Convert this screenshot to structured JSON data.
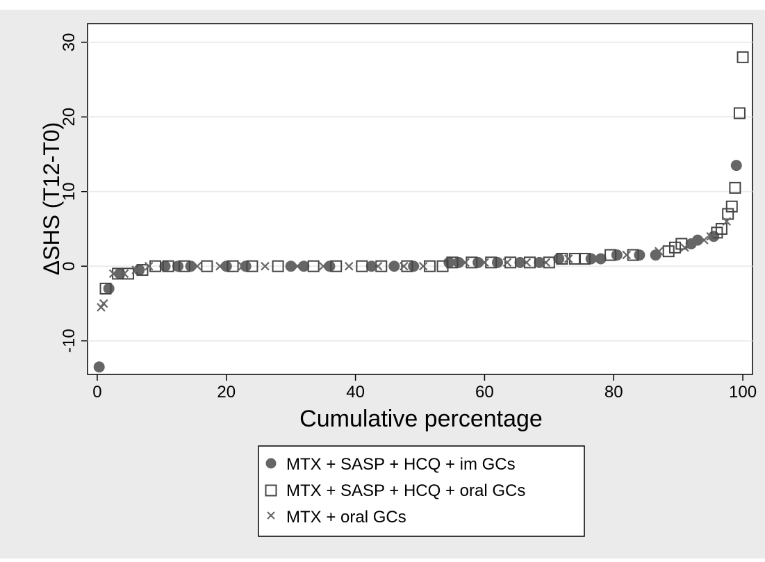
{
  "chart_data": {
    "type": "scatter",
    "xlabel": "Cumulative percentage",
    "ylabel": "ΔSHS (T12-T0)",
    "xlim": [
      -1.5,
      101.5
    ],
    "ylim": [
      -14.5,
      32.5
    ],
    "xticks": [
      0,
      20,
      40,
      60,
      80,
      100
    ],
    "yticks": [
      -10,
      0,
      10,
      20,
      30
    ],
    "grid": "horizontal",
    "legend_position": "bottom",
    "colors": {
      "marker": "#666666",
      "hollow": "#444444",
      "background": "#ebebeb",
      "plot": "#ffffff"
    },
    "series": [
      {
        "name": "MTX + SASP + HCQ + im GCs",
        "marker": "filled-circle",
        "points": [
          [
            0.3,
            -13.5
          ],
          [
            1.8,
            -3.0
          ],
          [
            3.5,
            -1.0
          ],
          [
            6.5,
            -0.5
          ],
          [
            10.5,
            0
          ],
          [
            12.5,
            0
          ],
          [
            14.5,
            0
          ],
          [
            20,
            0
          ],
          [
            23,
            0
          ],
          [
            30,
            0
          ],
          [
            32,
            0
          ],
          [
            36,
            0
          ],
          [
            42.5,
            0
          ],
          [
            46,
            0
          ],
          [
            49,
            0
          ],
          [
            54.5,
            0.5
          ],
          [
            56,
            0.5
          ],
          [
            59,
            0.5
          ],
          [
            62,
            0.5
          ],
          [
            65.5,
            0.5
          ],
          [
            68.5,
            0.5
          ],
          [
            71.5,
            1.0
          ],
          [
            76.5,
            1.0
          ],
          [
            78,
            1.0
          ],
          [
            80.5,
            1.5
          ],
          [
            84,
            1.5
          ],
          [
            86.5,
            1.5
          ],
          [
            92,
            3.0
          ],
          [
            93,
            3.5
          ],
          [
            95.5,
            4.0
          ],
          [
            99,
            13.5
          ]
        ]
      },
      {
        "name": "MTX + SASP + HCQ + oral GCs",
        "marker": "hollow-square",
        "points": [
          [
            1.3,
            -3.0
          ],
          [
            3.2,
            -1.0
          ],
          [
            4.8,
            -1.0
          ],
          [
            7.0,
            -0.5
          ],
          [
            9.0,
            0
          ],
          [
            11,
            0
          ],
          [
            13.5,
            0
          ],
          [
            17,
            0
          ],
          [
            21,
            0
          ],
          [
            24,
            0
          ],
          [
            28,
            0
          ],
          [
            33.5,
            0
          ],
          [
            37,
            0
          ],
          [
            41,
            0
          ],
          [
            44,
            0
          ],
          [
            48,
            0
          ],
          [
            51.5,
            0
          ],
          [
            53.5,
            0
          ],
          [
            55,
            0.5
          ],
          [
            58,
            0.5
          ],
          [
            61,
            0.5
          ],
          [
            64,
            0.5
          ],
          [
            67,
            0.5
          ],
          [
            70,
            0.5
          ],
          [
            72,
            1.0
          ],
          [
            74,
            1.0
          ],
          [
            75.5,
            1.0
          ],
          [
            79.5,
            1.5
          ],
          [
            83,
            1.5
          ],
          [
            88.5,
            2.0
          ],
          [
            89.5,
            2.5
          ],
          [
            90.5,
            3.0
          ],
          [
            96,
            4.5
          ],
          [
            96.7,
            5.0
          ],
          [
            97.7,
            7.0
          ],
          [
            98.3,
            8.0
          ],
          [
            98.8,
            10.5
          ],
          [
            99.5,
            20.5
          ],
          [
            100,
            28.0
          ]
        ]
      },
      {
        "name": "MTX + oral GCs",
        "marker": "x",
        "points": [
          [
            0.6,
            -5.5
          ],
          [
            1.0,
            -5.0
          ],
          [
            2.5,
            -1.0
          ],
          [
            4.2,
            -1.0
          ],
          [
            6,
            -0.5
          ],
          [
            8,
            0
          ],
          [
            15.5,
            0
          ],
          [
            19,
            0
          ],
          [
            22.5,
            0
          ],
          [
            26,
            0
          ],
          [
            31,
            0
          ],
          [
            35,
            0
          ],
          [
            39,
            0
          ],
          [
            43.5,
            0
          ],
          [
            47.5,
            0
          ],
          [
            50.5,
            0
          ],
          [
            57,
            0.5
          ],
          [
            60,
            0.5
          ],
          [
            63.5,
            0.5
          ],
          [
            66.5,
            0.5
          ],
          [
            69.5,
            0.5
          ],
          [
            73,
            1.0
          ],
          [
            77.5,
            1.0
          ],
          [
            82,
            1.5
          ],
          [
            87,
            2.0
          ],
          [
            91,
            2.5
          ],
          [
            94,
            3.5
          ],
          [
            95,
            4.0
          ],
          [
            97.5,
            6.0
          ]
        ]
      }
    ]
  }
}
